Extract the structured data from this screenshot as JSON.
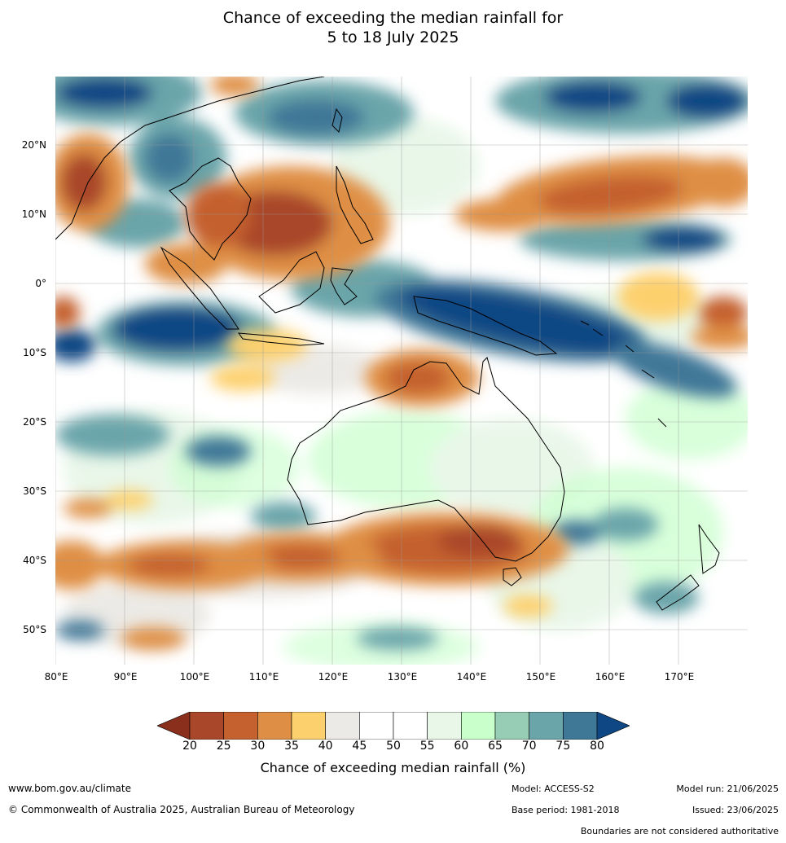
{
  "title_line1": "Chance of exceeding the median rainfall for",
  "title_line2": "5 to 18 July 2025",
  "lat_labels": [
    "20°N",
    "10°N",
    "0°",
    "10°S",
    "20°S",
    "30°S",
    "40°S",
    "50°S"
  ],
  "lon_labels": [
    "80°E",
    "90°E",
    "100°E",
    "110°E",
    "120°E",
    "130°E",
    "140°E",
    "150°E",
    "160°E",
    "170°E"
  ],
  "colorbar": {
    "ticks": [
      "20",
      "25",
      "30",
      "35",
      "40",
      "45",
      "50",
      "55",
      "60",
      "65",
      "70",
      "75",
      "80"
    ],
    "colors": [
      "#8b2f1d",
      "#a9472a",
      "#c4612f",
      "#df8f45",
      "#fdd06e",
      "#eceae6",
      "#ffffff",
      "#ffffff",
      "#e9f7e9",
      "#c8ffcb",
      "#96cdb4",
      "#6aa5aa",
      "#3f7797",
      "#0f4784"
    ],
    "label": "Chance of exceeding median rainfall (%)"
  },
  "footer": {
    "website": "www.bom.gov.au/climate",
    "copyright": "© Commonwealth of Australia 2025, Australian Bureau of Meteorology",
    "model": "Model: ACCESS-S2",
    "base_period": "Base period: 1981-2018",
    "model_run": "Model run: 21/06/2025",
    "issued": "Issued: 23/06/2025",
    "disclaimer": "Boundaries are not considered authoritative"
  }
}
